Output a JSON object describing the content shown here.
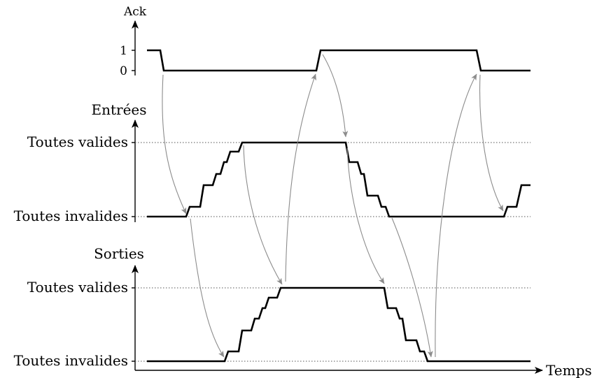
{
  "colors": {
    "signal": "#000000",
    "arrow": "#8c8c8c",
    "guide": "#555555"
  },
  "ack": {
    "axis_label": "Ack",
    "tick_1": "1",
    "tick_0": "0"
  },
  "inputs": {
    "axis_label": "Entrées",
    "level_high": "Toutes valides",
    "level_low": "Toutes invalides"
  },
  "outputs": {
    "axis_label": "Sorties",
    "level_high": "Toutes valides",
    "level_low": "Toutes invalides"
  },
  "time_axis": {
    "label": "Temps"
  }
}
